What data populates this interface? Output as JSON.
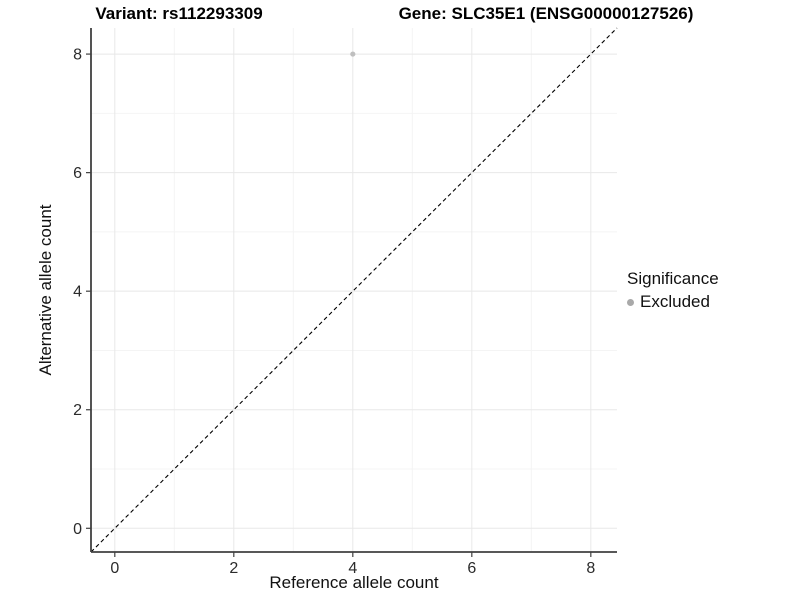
{
  "chart_data": {
    "type": "scatter",
    "titles": {
      "left": "Variant: rs112293309",
      "right": "Gene: SLC35E1 (ENSG00000127526)"
    },
    "xlabel": "Reference allele count",
    "ylabel": "Alternative allele count",
    "xlim": [
      -0.4,
      8.44
    ],
    "ylim": [
      -0.4,
      8.44
    ],
    "x_ticks": [
      0,
      2,
      4,
      6,
      8
    ],
    "y_ticks": [
      0,
      2,
      4,
      6,
      8
    ],
    "x_minor_ticks": [
      1,
      3,
      5,
      7
    ],
    "y_minor_ticks": [
      1,
      3,
      5,
      7
    ],
    "grid": true,
    "points": [
      {
        "x": 4,
        "y": 8,
        "series": "Excluded",
        "color": "#bfbfbf",
        "radius": 2.6
      }
    ],
    "reference_line": {
      "kind": "identity",
      "from": [
        -0.4,
        -0.4
      ],
      "to": [
        8.44,
        8.44
      ],
      "style": "dashed",
      "color": "#000000"
    },
    "legend": {
      "position": "right",
      "title": "Significance",
      "items": [
        {
          "label": "Excluded",
          "color": "#a9a9a9",
          "shape": "circle"
        }
      ]
    }
  },
  "colors": {
    "background": "#ffffff",
    "grid_major": "#e8e8e8",
    "grid_minor": "#f4f4f4",
    "axis": "#404040",
    "tick_label": "#2b2b2b"
  }
}
